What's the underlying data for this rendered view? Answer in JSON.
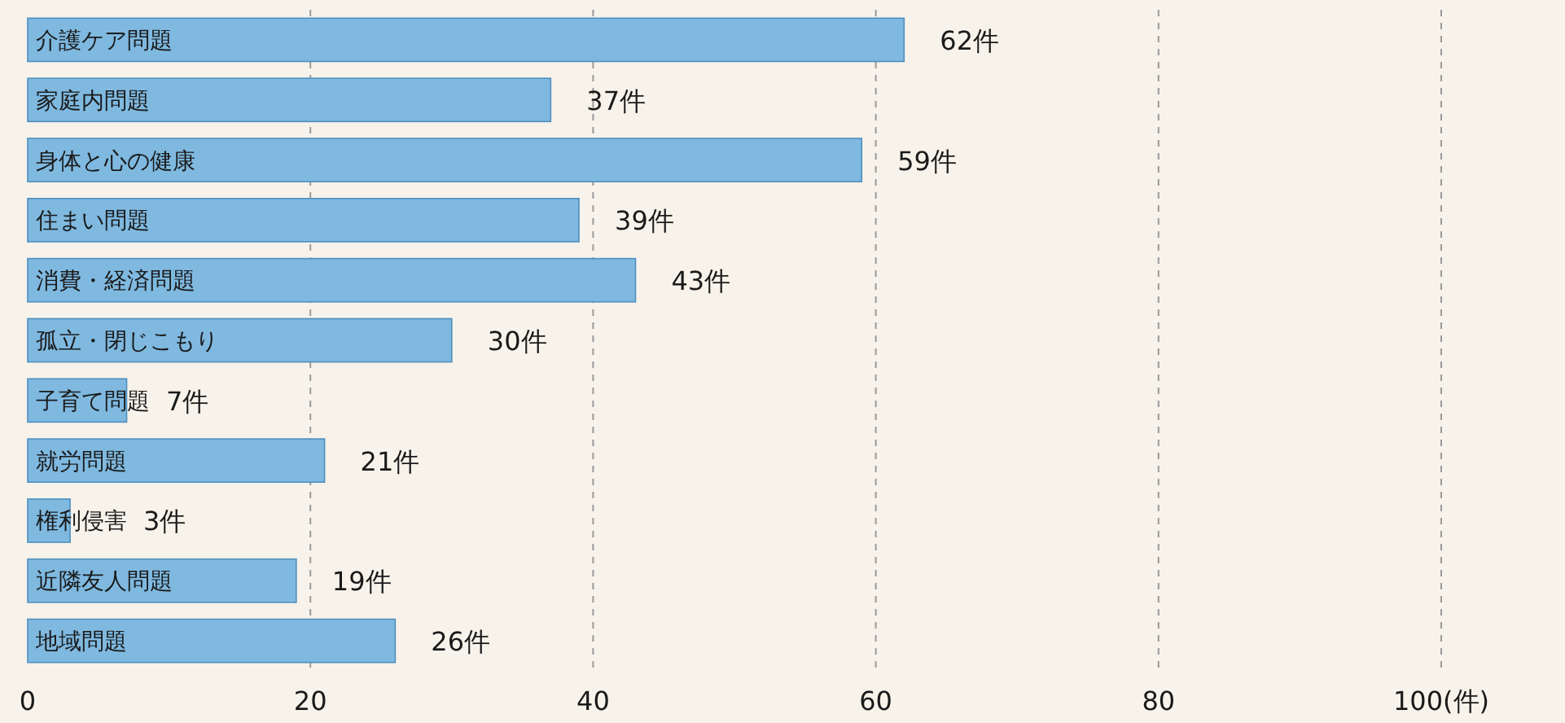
{
  "chart_data": {
    "type": "bar",
    "orientation": "horizontal",
    "categories": [
      "介護ケア問題",
      "家庭内問題",
      "身体と心の健康",
      "住まい問題",
      "消費・経済問題",
      "孤立・閉じこもり",
      "子育て問題",
      "就労問題",
      "権利侵害",
      "近隣友人問題",
      "地域問題"
    ],
    "values": [
      62,
      37,
      59,
      39,
      43,
      30,
      7,
      21,
      3,
      19,
      26
    ],
    "value_labels": [
      "62件",
      "37件",
      "59件",
      "39件",
      "43件",
      "30件",
      "7件",
      "21件",
      "3件",
      "19件",
      "26件"
    ],
    "color": "#7fb9e0",
    "xlim": [
      0,
      100
    ],
    "xticks": [
      0,
      20,
      40,
      60,
      80,
      {
        "value": 100,
        "label": "100(件)"
      }
    ],
    "grid": "x"
  }
}
